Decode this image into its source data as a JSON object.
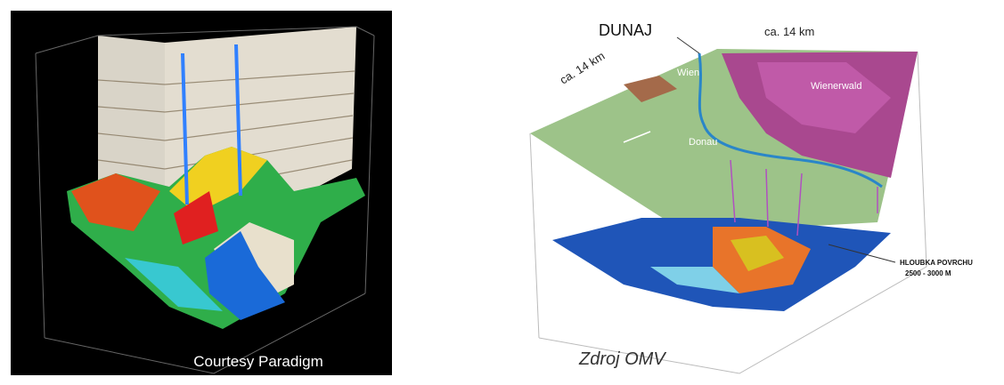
{
  "left_image": {
    "caption": "Courtesy Paradigm"
  },
  "right_image": {
    "labels": {
      "river_main": "DUNAJ",
      "width_top": "ca. 14 km",
      "width_side": "ca. 14 km",
      "city": "Wien",
      "forest": "Wienerwald",
      "river": "Donau",
      "depth_title": "HLOUBKA POVRCHU",
      "depth_range": "2500 - 3000 M"
    },
    "caption": "Zdroj OMV"
  }
}
